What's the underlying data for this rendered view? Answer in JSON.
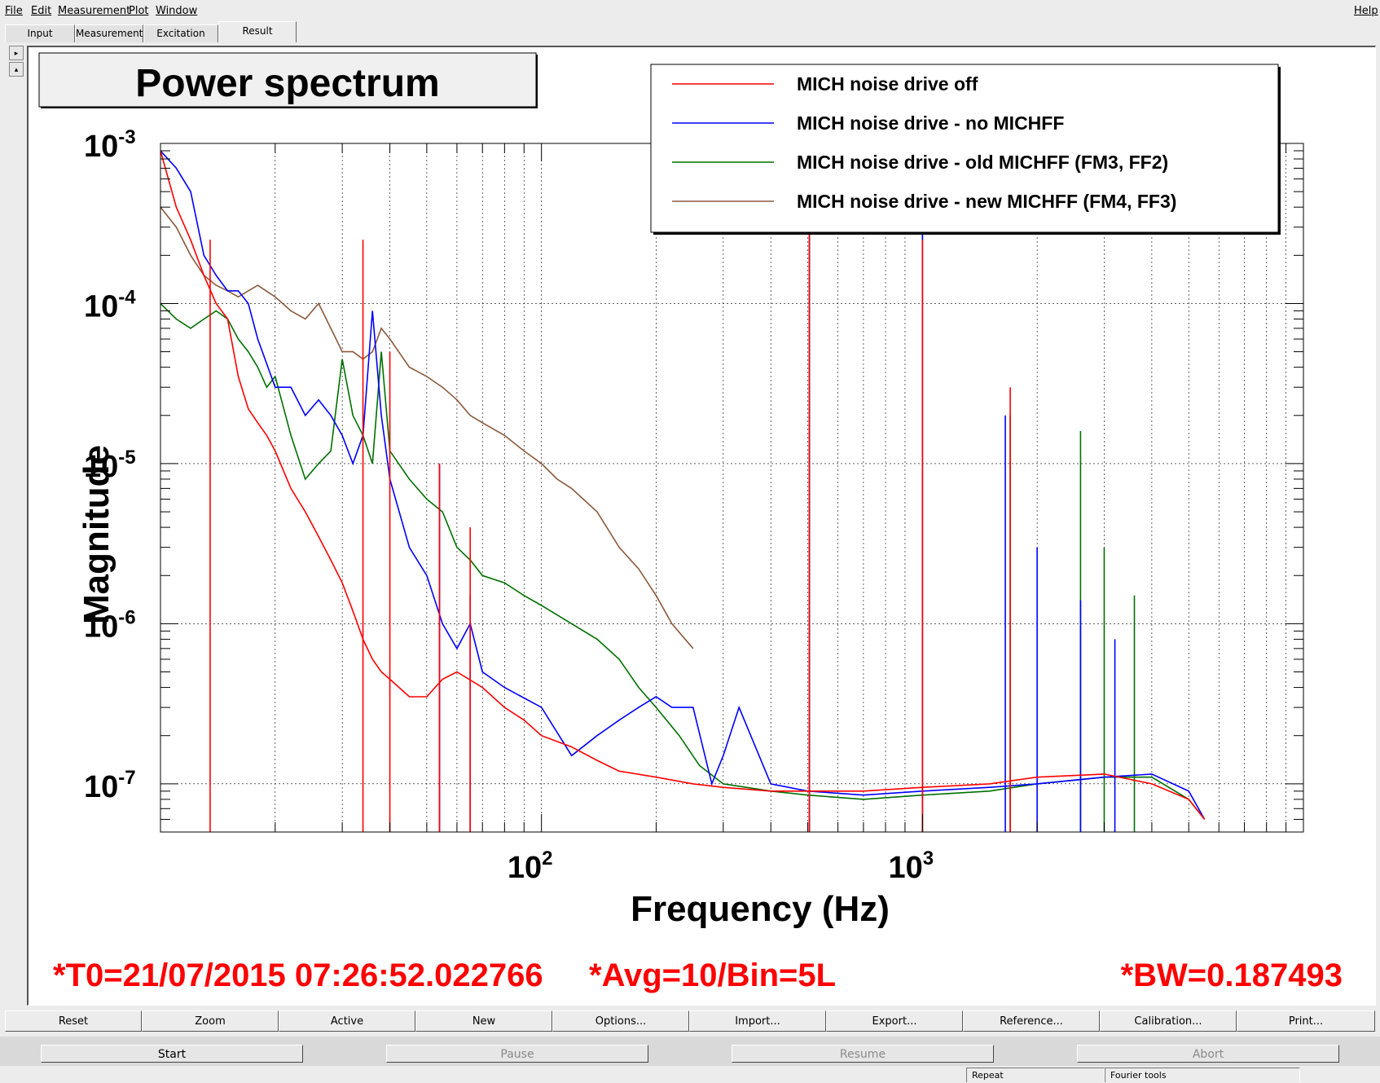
{
  "menubar": {
    "items": [
      "File",
      "Edit",
      "Measurement",
      "Plot",
      "Window"
    ],
    "help": "Help"
  },
  "tabs": [
    "Input",
    "Measurement",
    "Excitation",
    "Result"
  ],
  "active_tab": "Result",
  "side_buttons": {
    "up": "▸",
    "down": "▴"
  },
  "chart_data": {
    "type": "line",
    "title": "Power spectrum",
    "xlabel": "Frequency (Hz)",
    "ylabel": "Magnitude",
    "xscale": "log",
    "yscale": "log",
    "xlim": [
      10,
      10000
    ],
    "ylim": [
      5e-08,
      0.001
    ],
    "x_tick_labels": [
      {
        "base": "10",
        "exp": "2"
      },
      {
        "base": "10",
        "exp": "3"
      }
    ],
    "y_tick_labels": [
      {
        "base": "10",
        "exp": "-3"
      },
      {
        "base": "10",
        "exp": "-4"
      },
      {
        "base": "10",
        "exp": "-5"
      },
      {
        "base": "10",
        "exp": "-6"
      },
      {
        "base": "10",
        "exp": "-7"
      }
    ],
    "grid": true,
    "legend_position": "top-right",
    "series": [
      {
        "name": "MICH noise drive off",
        "color": "#ff0000",
        "x": [
          10,
          11,
          12,
          13,
          14,
          15,
          16,
          17,
          18,
          19,
          20,
          22,
          24,
          26,
          28,
          30,
          32,
          34,
          36,
          38,
          40,
          45,
          50,
          55,
          60,
          70,
          80,
          90,
          100,
          120,
          140,
          160,
          200,
          250,
          300,
          400,
          500,
          700,
          1000,
          1500,
          2000,
          3000,
          4000,
          5000,
          5500
        ],
        "y": [
          0.0009,
          0.0004,
          0.00025,
          0.00015,
          0.0001,
          8e-05,
          3.5e-05,
          2.2e-05,
          1.8e-05,
          1.5e-05,
          1.2e-05,
          7e-06,
          5e-06,
          3.5e-06,
          2.5e-06,
          1.8e-06,
          1.2e-06,
          8e-07,
          6e-07,
          5e-07,
          4.5e-07,
          3.5e-07,
          3.5e-07,
          4.5e-07,
          5e-07,
          4e-07,
          3e-07,
          2.5e-07,
          2e-07,
          1.7e-07,
          1.4e-07,
          1.2e-07,
          1.1e-07,
          1e-07,
          9.5e-08,
          9e-08,
          9e-08,
          9e-08,
          9.5e-08,
          1e-07,
          1.1e-07,
          1.15e-07,
          1e-07,
          8e-08,
          6e-08
        ],
        "peaks": [
          [
            13.5,
            0.00025
          ],
          [
            34,
            0.00025
          ],
          [
            40,
            5e-05
          ],
          [
            54,
            1e-05
          ],
          [
            65,
            4e-06
          ],
          [
            505,
            0.0003
          ],
          [
            1000,
            0.00025
          ],
          [
            1700,
            3e-05
          ]
        ]
      },
      {
        "name": "MICH noise drive - no MICHFF",
        "color": "#0000ff",
        "x": [
          10,
          11,
          12,
          13,
          14,
          15,
          16,
          17,
          18,
          20,
          22,
          24,
          26,
          28,
          30,
          32,
          34,
          36,
          38,
          40,
          45,
          50,
          55,
          60,
          65,
          70,
          80,
          100,
          120,
          140,
          160,
          180,
          200,
          220,
          250,
          280,
          300,
          330,
          400,
          500,
          700,
          1000,
          1500,
          2000,
          3000,
          4000,
          5000,
          5500
        ],
        "y": [
          0.0009,
          0.0007,
          0.0005,
          0.0002,
          0.00015,
          0.00012,
          0.00012,
          0.0001,
          6e-05,
          3e-05,
          3e-05,
          2e-05,
          2.5e-05,
          2e-05,
          1.5e-05,
          1e-05,
          1.5e-05,
          9e-05,
          2e-05,
          8e-06,
          3e-06,
          2e-06,
          1e-06,
          7e-07,
          1e-06,
          5e-07,
          4e-07,
          3e-07,
          1.5e-07,
          2e-07,
          2.5e-07,
          3e-07,
          3.5e-07,
          3e-07,
          3e-07,
          1e-07,
          1.5e-07,
          3e-07,
          1e-07,
          9e-08,
          8.5e-08,
          9e-08,
          9.5e-08,
          1e-07,
          1.1e-07,
          1.15e-07,
          9e-08,
          6e-08
        ],
        "peaks": [
          [
            54,
            1e-05
          ],
          [
            65,
            1.5e-06
          ],
          [
            505,
            0.0003
          ],
          [
            1000,
            0.0003
          ],
          [
            1650,
            2e-05
          ],
          [
            2000,
            3e-06
          ],
          [
            2600,
            1.4e-06
          ],
          [
            3200,
            8e-07
          ]
        ]
      },
      {
        "name": "MICH noise drive - old MICHFF (FM3, FF2)",
        "color": "#007000",
        "x": [
          10,
          11,
          12,
          13,
          14,
          15,
          16,
          17,
          18,
          19,
          20,
          22,
          24,
          26,
          28,
          30,
          32,
          34,
          36,
          38,
          40,
          45,
          50,
          55,
          60,
          65,
          70,
          80,
          90,
          100,
          120,
          140,
          160,
          180,
          200,
          230,
          260,
          300,
          400,
          500,
          700,
          1000,
          1500,
          2000,
          3000,
          4000,
          5000,
          5500
        ],
        "y": [
          0.0001,
          8e-05,
          7e-05,
          8e-05,
          9e-05,
          8e-05,
          6e-05,
          5e-05,
          4e-05,
          3e-05,
          3.5e-05,
          1.5e-05,
          8e-06,
          1e-05,
          1.2e-05,
          4.5e-05,
          2e-05,
          1.5e-05,
          1e-05,
          5e-05,
          1.2e-05,
          8e-06,
          6e-06,
          5e-06,
          3e-06,
          2.5e-06,
          2e-06,
          1.8e-06,
          1.5e-06,
          1.3e-06,
          1e-06,
          8e-07,
          6e-07,
          4e-07,
          3e-07,
          2e-07,
          1.3e-07,
          1e-07,
          9e-08,
          8.5e-08,
          8e-08,
          8.5e-08,
          9e-08,
          1e-07,
          1.1e-07,
          1.1e-07,
          8e-08,
          6e-08
        ],
        "peaks": [
          [
            505,
            0.0003
          ],
          [
            1000,
            0.0003
          ],
          [
            1700,
            2e-05
          ],
          [
            2600,
            1.6e-05
          ],
          [
            3000,
            3e-06
          ],
          [
            3600,
            1.5e-06
          ]
        ]
      },
      {
        "name": "MICH noise drive - new MICHFF (FM4, FF3)",
        "color": "#8b5a3c",
        "x": [
          10,
          11,
          12,
          13,
          14,
          15,
          16,
          17,
          18,
          20,
          22,
          24,
          26,
          28,
          30,
          32,
          34,
          36,
          38,
          40,
          45,
          50,
          55,
          60,
          65,
          70,
          80,
          90,
          100,
          110,
          120,
          140,
          160,
          180,
          200,
          220,
          250
        ],
        "y": [
          0.0004,
          0.0003,
          0.0002,
          0.00015,
          0.00013,
          0.00012,
          0.00011,
          0.00012,
          0.00013,
          0.00011,
          9e-05,
          8e-05,
          0.0001,
          7e-05,
          5e-05,
          5e-05,
          4.5e-05,
          5e-05,
          7e-05,
          6e-05,
          4e-05,
          3.5e-05,
          3e-05,
          2.5e-05,
          2e-05,
          1.8e-05,
          1.5e-05,
          1.2e-05,
          1e-05,
          8e-06,
          7e-06,
          5e-06,
          3e-06,
          2.2e-06,
          1.5e-06,
          1e-06,
          7e-07
        ],
        "peaks": []
      }
    ]
  },
  "annotations": {
    "t0": "*T0=21/07/2015 07:26:52.022766",
    "avg": "*Avg=10/Bin=5L",
    "bw": "*BW=0.187493"
  },
  "plot_buttons": [
    "Reset",
    "Zoom",
    "Active",
    "New",
    "Options...",
    "Import...",
    "Export...",
    "Reference...",
    "Calibration...",
    "Print..."
  ],
  "run_buttons": {
    "start": "Start",
    "pause": "Pause",
    "resume": "Resume",
    "abort": "Abort"
  },
  "status": {
    "repeat": "Repeat",
    "fourier": "Fourier tools"
  }
}
